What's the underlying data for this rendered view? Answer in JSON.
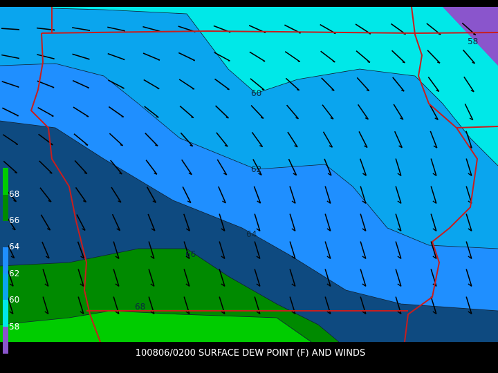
{
  "caption": "100806/0200 SURFACE DEW POINT (F) AND WINDS",
  "contour_labels": [
    "58",
    "60",
    "62",
    "64",
    "66",
    "68"
  ],
  "legend": {
    "labels": [
      "68",
      "66",
      "64",
      "62",
      "60",
      "58"
    ]
  }
}
